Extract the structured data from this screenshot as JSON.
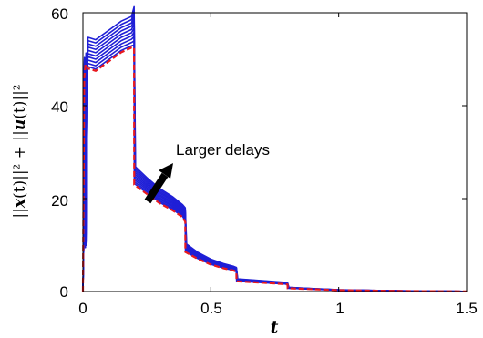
{
  "chart_data": {
    "type": "line",
    "title": "",
    "xlabel": "t",
    "ylabel": {
      "part1": "||",
      "x": "x",
      "paren_t1": "(t)",
      "part2": "||² + ||",
      "u": "u",
      "paren_t2": "(t)",
      "part3": "||²"
    },
    "xlim": [
      0,
      1.5
    ],
    "ylim": [
      0,
      60
    ],
    "xticks": [
      0,
      0.5,
      1,
      1.5
    ],
    "xtick_labels": [
      "0",
      "0.5",
      "1",
      "1.5"
    ],
    "yticks": [
      0,
      20,
      40,
      60
    ],
    "ytick_labels": [
      "0",
      "20",
      "40",
      "60"
    ],
    "grid": false,
    "annotation": {
      "text": "Larger delays",
      "arrow": "pointing up-right across the delayed curves"
    },
    "series": [
      {
        "color": "#e8191e",
        "dash": "dashed",
        "x": [
          0,
          0.005,
          0.01,
          0.02,
          0.05,
          0.1,
          0.15,
          0.19,
          0.2,
          0.2005,
          0.25,
          0.3,
          0.35,
          0.39,
          0.4,
          0.4005,
          0.45,
          0.5,
          0.55,
          0.59,
          0.6,
          0.6005,
          0.7,
          0.79,
          0.8,
          0.8005,
          0.9,
          1.0,
          1.1,
          1.2,
          1.3,
          1.4,
          1.5
        ],
        "y": [
          0,
          46,
          49,
          48,
          47.5,
          49.5,
          51.5,
          52.5,
          52.5,
          23,
          21,
          19,
          17.5,
          16,
          15,
          8.5,
          7,
          5.8,
          5,
          4.5,
          4.2,
          2.2,
          1.9,
          1.6,
          1.5,
          0.7,
          0.5,
          0.3,
          0.22,
          0.15,
          0.1,
          0.06,
          0.03
        ]
      },
      {
        "color": "#1f1fd6",
        "delay": 0.002,
        "boost": 0.2
      },
      {
        "color": "#1f1fd6",
        "delay": 0.004,
        "boost": 0.55
      },
      {
        "color": "#1f1fd6",
        "delay": 0.006,
        "boost": 0.9
      },
      {
        "color": "#1f1fd6",
        "delay": 0.008,
        "boost": 1.25
      },
      {
        "color": "#1f1fd6",
        "delay": 0.01,
        "boost": 1.6
      },
      {
        "color": "#1f1fd6",
        "delay": 0.012,
        "boost": 1.95
      },
      {
        "color": "#1f1fd6",
        "delay": 0.014,
        "boost": 2.3
      },
      {
        "color": "#1f1fd6",
        "delay": 0.016,
        "boost": 2.65
      },
      {
        "color": "#1f1fd6",
        "delay": 0.018,
        "boost": 3.0
      },
      {
        "color": "#1f1fd6",
        "delay": 0.02,
        "boost": 3.35
      }
    ]
  }
}
